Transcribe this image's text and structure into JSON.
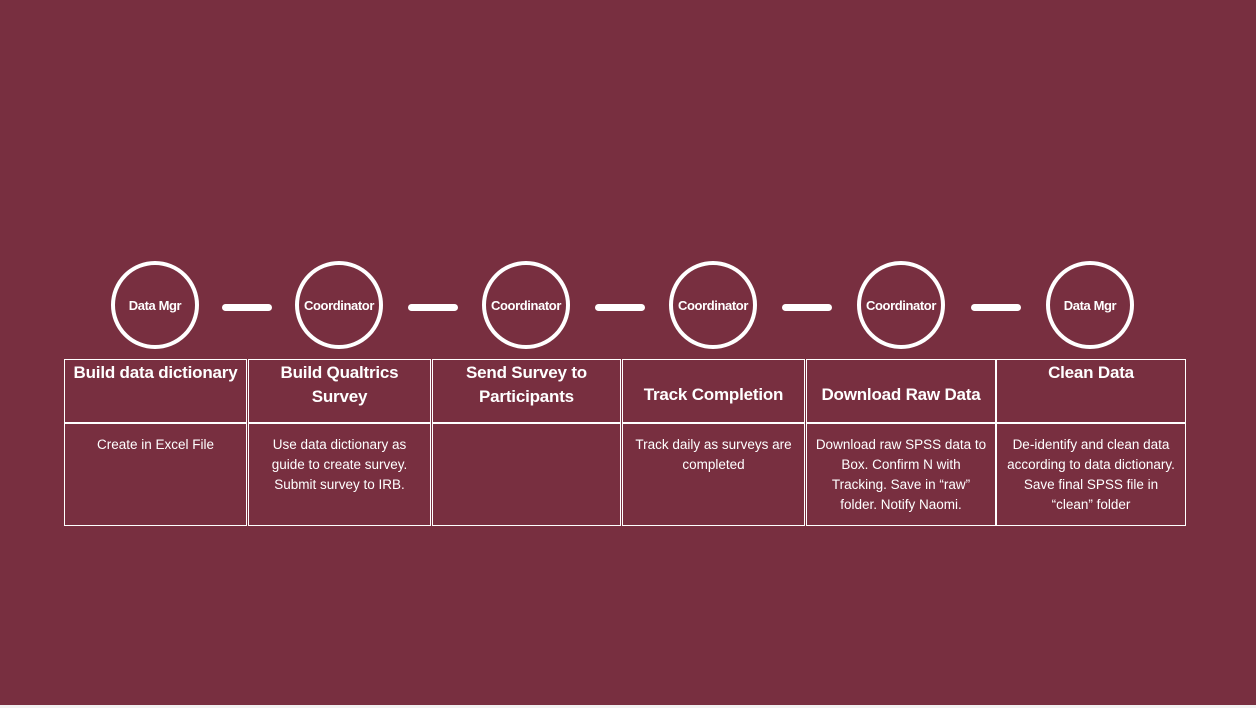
{
  "colors": {
    "background": "#782f40",
    "foreground": "#ffffff"
  },
  "steps": [
    {
      "role": "Data Mgr",
      "title": "Build data dictionary",
      "description": "Create in Excel File"
    },
    {
      "role": "Coordinator",
      "title": "Build Qualtrics Survey",
      "description": "Use data dictionary as guide to create survey. Submit survey to IRB."
    },
    {
      "role": "Coordinator",
      "title": "Send Survey to Participants",
      "description": ""
    },
    {
      "role": "Coordinator",
      "title": "Track Completion",
      "description": "Track daily as surveys are completed"
    },
    {
      "role": "Coordinator",
      "title": "Download Raw Data",
      "description": "Download raw SPSS data to Box. Confirm N with Tracking. Save in “raw” folder. Notify Naomi."
    },
    {
      "role": "Data Mgr",
      "title": "Clean Data",
      "description": "De-identify and clean data according to data dictionary. Save final SPSS file in “clean” folder"
    }
  ]
}
